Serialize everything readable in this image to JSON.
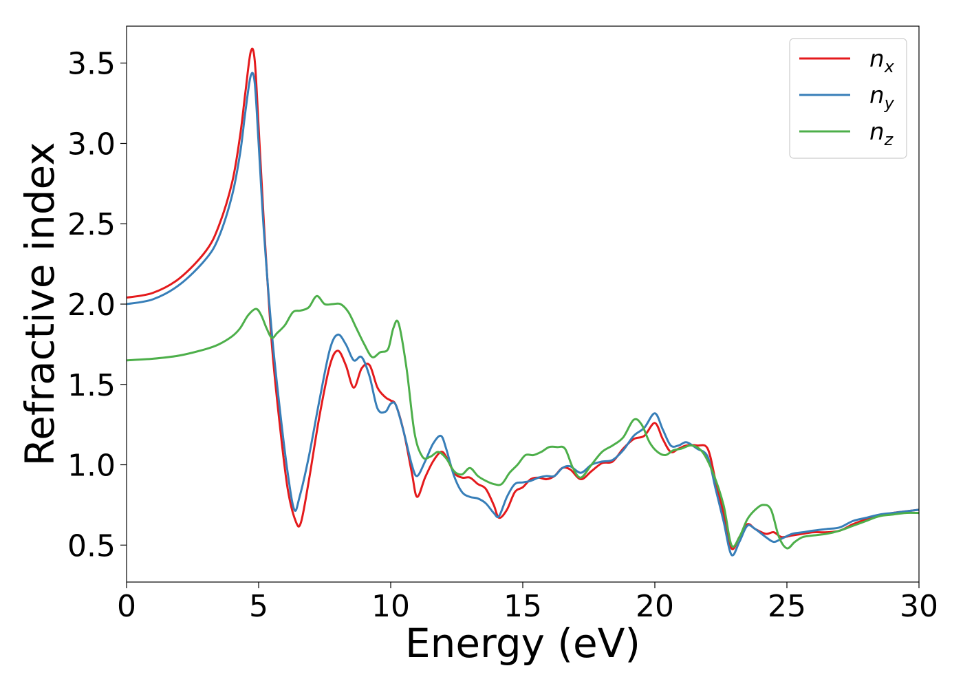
{
  "chart_data": {
    "type": "line",
    "title": "",
    "xlabel": "Energy (eV)",
    "ylabel": "Refractive index",
    "xlim": [
      0,
      30
    ],
    "ylim": [
      0.27,
      3.73
    ],
    "xticks": [
      0,
      5,
      10,
      15,
      20,
      25,
      30
    ],
    "xtick_labels": [
      "0",
      "5",
      "10",
      "15",
      "20",
      "25",
      "30"
    ],
    "yticks": [
      0.5,
      1.0,
      1.5,
      2.0,
      2.5,
      3.0,
      3.5
    ],
    "ytick_labels": [
      "0.5",
      "1.0",
      "1.5",
      "2.0",
      "2.5",
      "3.0",
      "3.5"
    ],
    "grid": false,
    "legend_position": "top-right",
    "series": [
      {
        "name": "n_x",
        "label_base": "n",
        "label_sub": "x",
        "color": "#e41a1c",
        "x": [
          0,
          1,
          2,
          3,
          3.5,
          4,
          4.3,
          4.5,
          4.7,
          4.85,
          5.0,
          5.2,
          5.5,
          5.8,
          6.1,
          6.4,
          6.6,
          6.9,
          7.3,
          7.7,
          8.0,
          8.3,
          8.6,
          8.9,
          9.2,
          9.5,
          9.8,
          10.0,
          10.2,
          10.5,
          10.8,
          11.0,
          11.3,
          11.6,
          11.9,
          12.1,
          12.4,
          12.7,
          13.0,
          13.3,
          13.6,
          13.9,
          14.1,
          14.4,
          14.7,
          15.0,
          15.3,
          15.6,
          15.9,
          16.2,
          16.5,
          16.8,
          17.2,
          17.6,
          18.0,
          18.4,
          18.8,
          19.2,
          19.6,
          20.0,
          20.3,
          20.6,
          20.9,
          21.2,
          21.6,
          22.0,
          22.3,
          22.6,
          22.9,
          23.2,
          23.5,
          23.8,
          24.2,
          24.5,
          24.8,
          25.2,
          25.6,
          26.0,
          26.5,
          27.0,
          27.5,
          28.0,
          28.5,
          29.0,
          29.5,
          30.0
        ],
        "y": [
          2.04,
          2.07,
          2.16,
          2.33,
          2.49,
          2.76,
          3.05,
          3.32,
          3.57,
          3.52,
          3.1,
          2.5,
          1.75,
          1.25,
          0.85,
          0.65,
          0.64,
          0.9,
          1.3,
          1.62,
          1.71,
          1.62,
          1.48,
          1.6,
          1.62,
          1.48,
          1.42,
          1.4,
          1.37,
          1.2,
          0.95,
          0.8,
          0.92,
          1.02,
          1.08,
          1.05,
          0.95,
          0.92,
          0.92,
          0.88,
          0.85,
          0.75,
          0.67,
          0.72,
          0.83,
          0.86,
          0.91,
          0.92,
          0.91,
          0.93,
          0.98,
          0.97,
          0.91,
          0.96,
          1.01,
          1.02,
          1.1,
          1.16,
          1.18,
          1.26,
          1.16,
          1.08,
          1.1,
          1.12,
          1.12,
          1.1,
          0.9,
          0.7,
          0.48,
          0.55,
          0.63,
          0.6,
          0.57,
          0.58,
          0.55,
          0.56,
          0.57,
          0.58,
          0.58,
          0.59,
          0.63,
          0.66,
          0.68,
          0.7,
          0.71,
          0.72
        ]
      },
      {
        "name": "n_y",
        "label_base": "n",
        "label_sub": "y",
        "color": "#377eb8",
        "x": [
          0,
          1,
          2,
          3,
          3.5,
          4,
          4.3,
          4.5,
          4.7,
          4.85,
          5.0,
          5.2,
          5.5,
          5.8,
          6.1,
          6.35,
          6.55,
          6.9,
          7.3,
          7.7,
          8.0,
          8.3,
          8.6,
          8.9,
          9.2,
          9.5,
          9.8,
          10.0,
          10.2,
          10.5,
          10.8,
          11.0,
          11.3,
          11.6,
          11.9,
          12.1,
          12.4,
          12.7,
          13.0,
          13.3,
          13.6,
          13.9,
          14.1,
          14.4,
          14.7,
          15.0,
          15.3,
          15.6,
          15.9,
          16.2,
          16.5,
          16.8,
          17.2,
          17.6,
          18.0,
          18.4,
          18.8,
          19.2,
          19.6,
          20.0,
          20.3,
          20.6,
          20.9,
          21.2,
          21.6,
          22.0,
          22.3,
          22.6,
          22.9,
          23.2,
          23.5,
          23.8,
          24.2,
          24.5,
          24.8,
          25.2,
          25.6,
          26.0,
          26.5,
          27.0,
          27.5,
          28.0,
          28.5,
          29.0,
          29.5,
          30.0
        ],
        "y": [
          2.0,
          2.03,
          2.12,
          2.28,
          2.42,
          2.68,
          2.94,
          3.2,
          3.42,
          3.38,
          3.0,
          2.45,
          1.82,
          1.35,
          0.95,
          0.72,
          0.8,
          1.05,
          1.4,
          1.72,
          1.81,
          1.75,
          1.65,
          1.67,
          1.55,
          1.35,
          1.33,
          1.38,
          1.37,
          1.2,
          1.0,
          0.93,
          1.02,
          1.13,
          1.18,
          1.1,
          0.93,
          0.83,
          0.8,
          0.79,
          0.76,
          0.7,
          0.68,
          0.8,
          0.88,
          0.89,
          0.9,
          0.92,
          0.93,
          0.93,
          0.98,
          0.99,
          0.95,
          1.0,
          1.02,
          1.03,
          1.09,
          1.18,
          1.23,
          1.32,
          1.22,
          1.12,
          1.12,
          1.14,
          1.1,
          1.05,
          0.85,
          0.65,
          0.44,
          0.52,
          0.62,
          0.6,
          0.55,
          0.52,
          0.54,
          0.57,
          0.58,
          0.59,
          0.6,
          0.61,
          0.65,
          0.67,
          0.69,
          0.7,
          0.71,
          0.72
        ]
      },
      {
        "name": "n_z",
        "label_base": "n",
        "label_sub": "z",
        "color": "#4daf4a",
        "x": [
          0,
          1,
          2,
          3,
          3.5,
          4,
          4.3,
          4.6,
          4.9,
          5.1,
          5.3,
          5.5,
          5.7,
          6.0,
          6.3,
          6.6,
          6.9,
          7.2,
          7.5,
          7.8,
          8.1,
          8.4,
          8.7,
          9.0,
          9.3,
          9.6,
          9.9,
          10.1,
          10.3,
          10.6,
          10.9,
          11.2,
          11.5,
          11.8,
          12.1,
          12.4,
          12.7,
          13.0,
          13.3,
          13.6,
          13.9,
          14.2,
          14.5,
          14.8,
          15.1,
          15.4,
          15.7,
          16.0,
          16.3,
          16.6,
          16.9,
          17.2,
          17.6,
          18.0,
          18.4,
          18.8,
          19.2,
          19.5,
          19.8,
          20.1,
          20.4,
          20.7,
          21.0,
          21.4,
          21.8,
          22.2,
          22.6,
          22.9,
          23.2,
          23.5,
          23.8,
          24.1,
          24.4,
          24.7,
          25.0,
          25.3,
          25.6,
          26.0,
          26.5,
          27.0,
          27.5,
          28.0,
          28.5,
          29.0,
          29.5,
          30.0
        ],
        "y": [
          1.65,
          1.66,
          1.68,
          1.72,
          1.75,
          1.8,
          1.85,
          1.93,
          1.97,
          1.93,
          1.85,
          1.79,
          1.82,
          1.87,
          1.95,
          1.96,
          1.98,
          2.05,
          2.0,
          2.0,
          2.0,
          1.95,
          1.85,
          1.75,
          1.67,
          1.7,
          1.72,
          1.85,
          1.88,
          1.6,
          1.2,
          1.05,
          1.05,
          1.08,
          1.04,
          0.96,
          0.94,
          0.98,
          0.93,
          0.9,
          0.88,
          0.88,
          0.95,
          1.0,
          1.06,
          1.06,
          1.08,
          1.11,
          1.11,
          1.1,
          0.98,
          0.92,
          1.0,
          1.08,
          1.12,
          1.17,
          1.28,
          1.25,
          1.14,
          1.08,
          1.06,
          1.09,
          1.1,
          1.12,
          1.08,
          0.95,
          0.75,
          0.5,
          0.55,
          0.66,
          0.72,
          0.75,
          0.72,
          0.55,
          0.48,
          0.52,
          0.55,
          0.56,
          0.57,
          0.59,
          0.62,
          0.65,
          0.68,
          0.69,
          0.7,
          0.7
        ]
      }
    ]
  }
}
